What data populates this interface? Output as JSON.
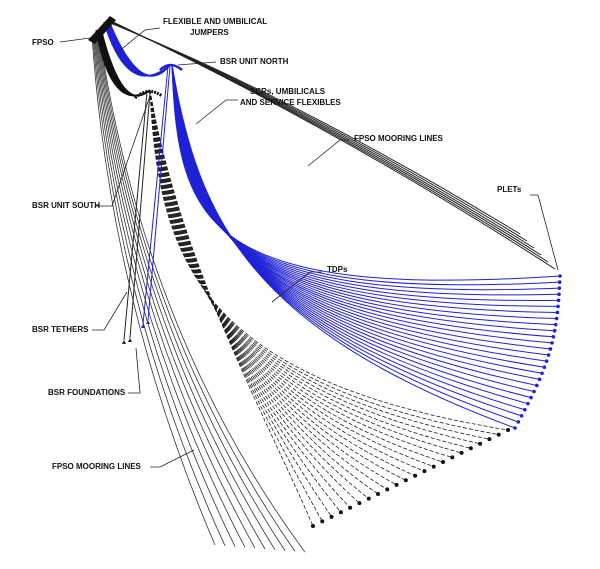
{
  "labels": [
    {
      "lines": [
        "FPSO"
      ]
    },
    {
      "lines": [
        "FLEXIBLE AND UMBILICAL",
        "JUMPERS"
      ]
    },
    {
      "lines": [
        "BSR UNIT NORTH"
      ]
    },
    {
      "lines": [
        "SCRs, UMBILICALS",
        "AND SERVICE FLEXIBLES"
      ]
    },
    {
      "lines": [
        "FPSO MOORING LINES"
      ]
    },
    {
      "lines": [
        "PLETs"
      ]
    },
    {
      "lines": [
        "TDPs"
      ]
    },
    {
      "lines": [
        "BSR UNIT SOUTH"
      ]
    },
    {
      "lines": [
        "BSR TETHERS"
      ]
    },
    {
      "lines": [
        "BSR FOUNDATIONS"
      ]
    },
    {
      "lines": [
        "FPSO MOORING LINES"
      ]
    }
  ]
}
